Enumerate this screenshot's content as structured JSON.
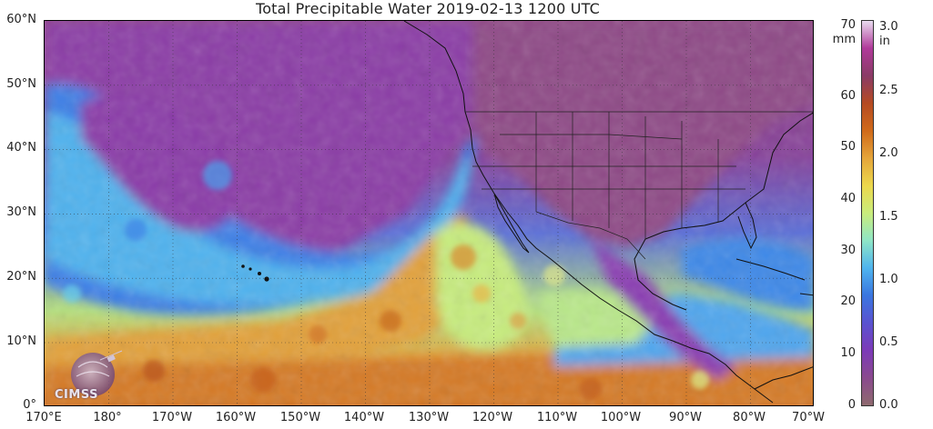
{
  "title": "Total Precipitable Water  2019-02-13 1200 UTC",
  "logo_text": "CIMSS",
  "axes": {
    "lat_labels": [
      "60°N",
      "50°N",
      "40°N",
      "30°N",
      "20°N",
      "10°N",
      "0°"
    ],
    "lon_labels": [
      "170°E",
      "180°",
      "170°W",
      "160°W",
      "150°W",
      "140°W",
      "130°W",
      "120°W",
      "110°W",
      "100°W",
      "90°W",
      "80°W",
      "70°W"
    ]
  },
  "colorbar": {
    "mm_unit": "mm",
    "in_unit": "in",
    "mm_ticks": [
      "70",
      "60",
      "50",
      "40",
      "30",
      "20",
      "10",
      "0"
    ],
    "in_ticks": [
      "3.0",
      "2.5",
      "2.0",
      "1.5",
      "1.0",
      "0.5",
      "0.0"
    ],
    "colors_top_to_bottom": [
      "#e9dcef",
      "#b03a9a",
      "#8a3b66",
      "#b54a22",
      "#d06a1a",
      "#e5a53a",
      "#ecd84c",
      "#c9ec7c",
      "#8fe6c6",
      "#4fb4ee",
      "#3a76e0",
      "#5a52d0",
      "#7c3ab8",
      "#8a4a8e",
      "#8e6a6e"
    ]
  },
  "legend_colors": {
    "very_moist": "#b5481c",
    "moist": "#e3a43a",
    "moderate": "#c8ec80",
    "light": "#4fa6ee",
    "dry": "#7a3ab8",
    "very_dry": "#8e4a86"
  }
}
